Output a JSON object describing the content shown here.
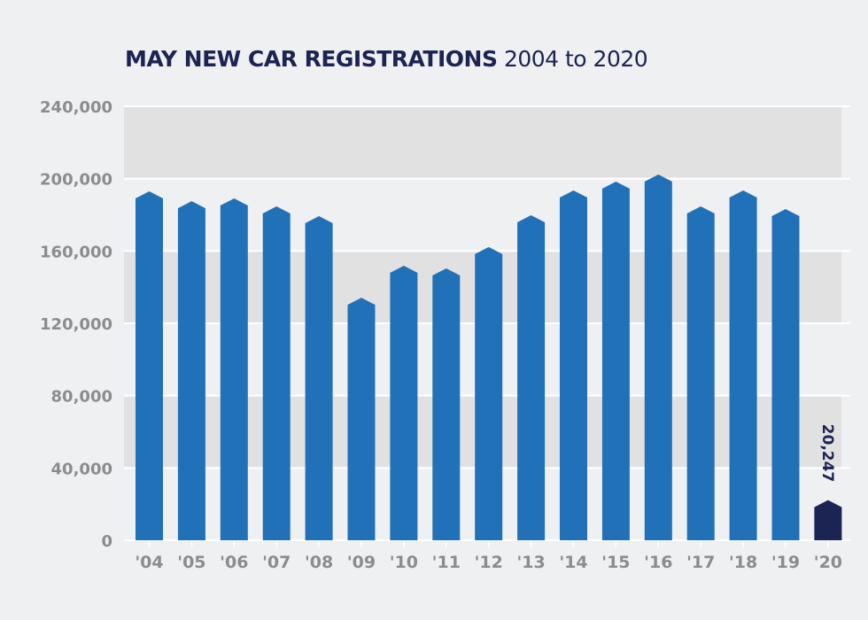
{
  "title": {
    "bold": "MAY NEW CAR REGISTRATIONS",
    "light": "2004 to 2020"
  },
  "colors": {
    "bar": "#2171b9",
    "bar_highlight": "#1b2452",
    "band": "#e2e1e2",
    "background": "#eff0f2",
    "gridline": "#ffffff",
    "tick_label": "#8c8c8c",
    "title": "#1b2452"
  },
  "chart_data": {
    "type": "bar",
    "title": "MAY NEW CAR REGISTRATIONS 2004 to 2020",
    "xlabel": "",
    "ylabel": "",
    "categories": [
      "'04",
      "'05",
      "'06",
      "'07",
      "'08",
      "'09",
      "'10",
      "'11",
      "'12",
      "'13",
      "'14",
      "'15",
      "'16",
      "'17",
      "'18",
      "'19",
      "'20"
    ],
    "values": [
      191000,
      185600,
      187100,
      182700,
      177300,
      132200,
      149900,
      148400,
      160200,
      177800,
      191500,
      196400,
      200300,
      182700,
      191500,
      181200,
      20247
    ],
    "highlight_index": 16,
    "data_labels": [
      {
        "index": 16,
        "text": "20,247"
      }
    ],
    "ylim": [
      0,
      240000
    ],
    "yticks": [
      0,
      40000,
      80000,
      120000,
      160000,
      200000,
      240000
    ],
    "ytick_labels": [
      "0",
      "40,000",
      "80,000",
      "120,000",
      "160,000",
      "200,000",
      "240,000"
    ],
    "grid": true,
    "banded_background": true,
    "legend": "none"
  }
}
